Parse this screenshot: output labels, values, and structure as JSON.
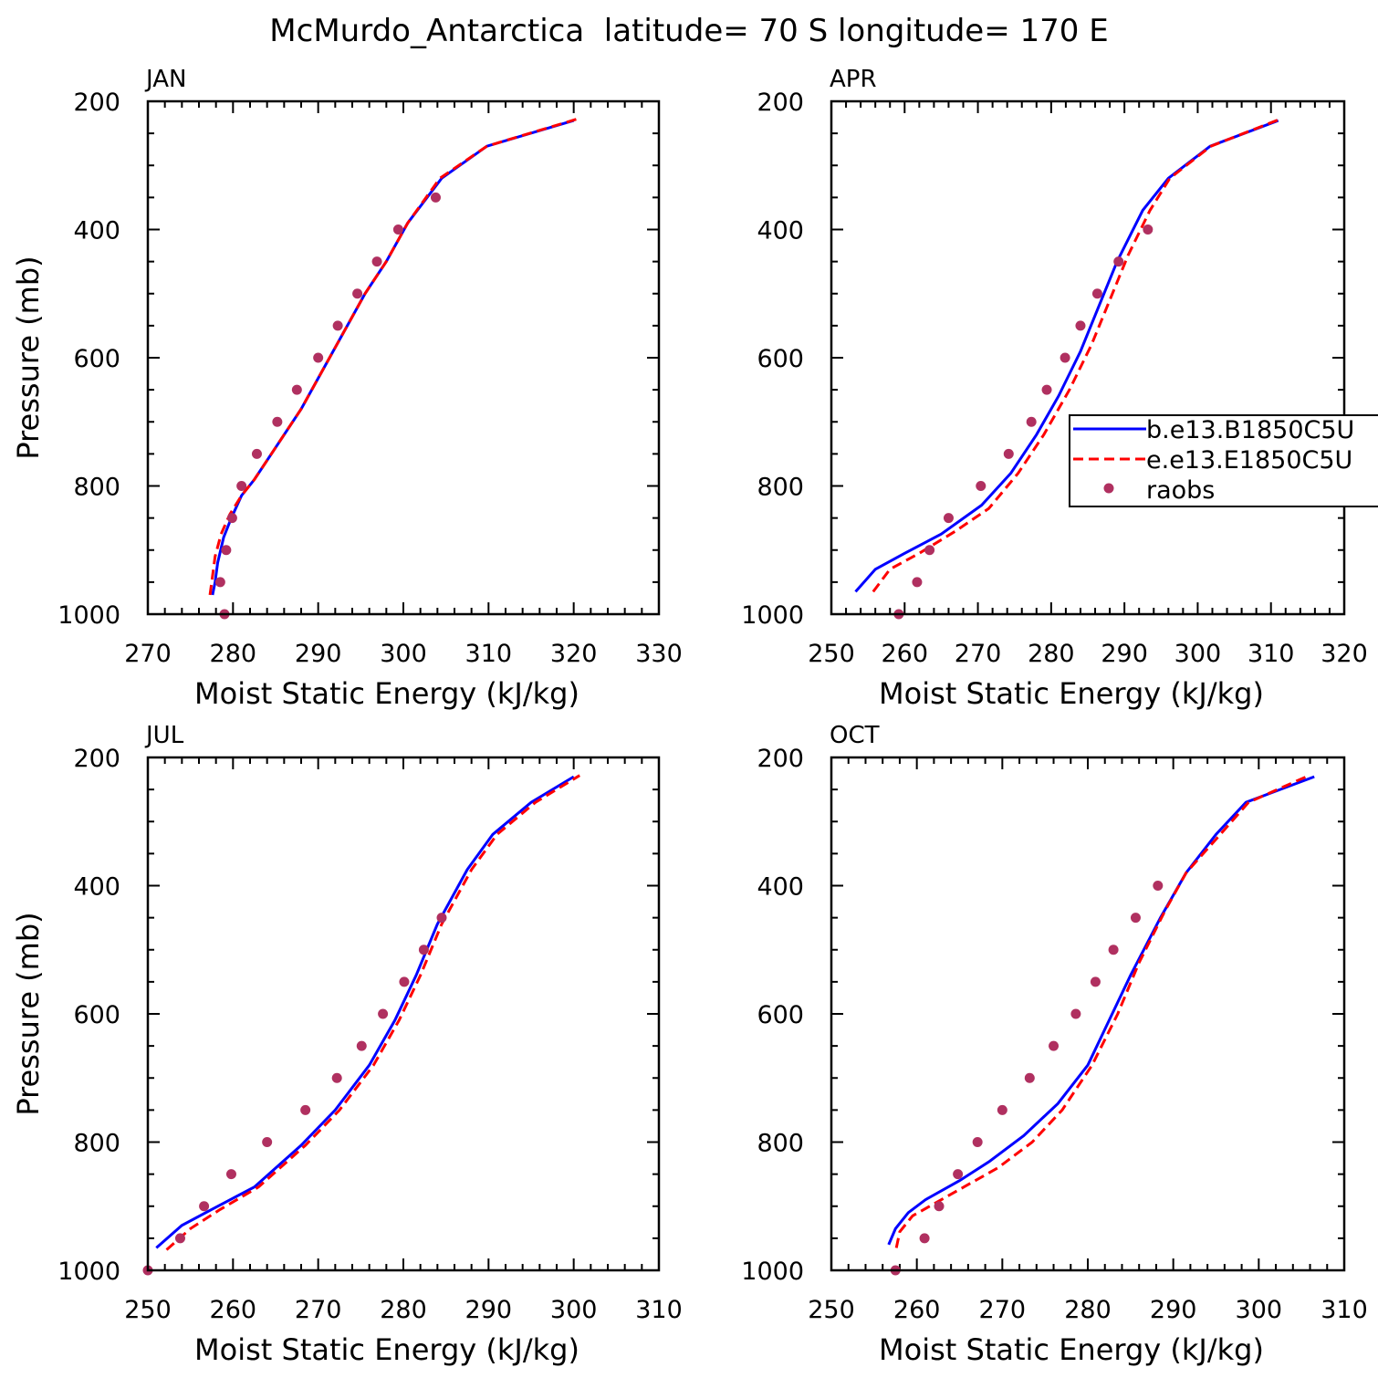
{
  "title": "McMurdo_Antarctica  latitude= 70 S longitude= 170 E",
  "colors": {
    "b": "#0000ff",
    "e": "#ff0000",
    "raobs": "#b03060"
  },
  "legend": {
    "placement": "right-of-APR-panel",
    "entries": [
      {
        "label": "b.e13.B1850C5U",
        "style": "solid",
        "color": "#0000ff"
      },
      {
        "label": "e.e13.E1850C5U",
        "style": "dashed",
        "color": "#ff0000"
      },
      {
        "label": "raobs",
        "style": "dot",
        "color": "#b03060"
      }
    ]
  },
  "chart_data": [
    {
      "type": "line",
      "title": "JAN",
      "xlabel": "Moist Static Energy (kJ/kg)",
      "ylabel": "Pressure (mb)",
      "xlim": [
        270,
        330
      ],
      "ylim": [
        1000,
        200
      ],
      "xticks": [
        270,
        280,
        290,
        300,
        310,
        320,
        330
      ],
      "yticks": [
        200,
        400,
        600,
        800,
        1000
      ],
      "series": [
        {
          "name": "b.e13.B1850C5U",
          "style": "solid",
          "color": "#0000ff",
          "points": [
            [
              277.6,
              970
            ],
            [
              277.9,
              950
            ],
            [
              278.2,
              920
            ],
            [
              278.9,
              880
            ],
            [
              279.8,
              850
            ],
            [
              281.0,
              815
            ],
            [
              282.5,
              790
            ],
            [
              285.0,
              740
            ],
            [
              288.0,
              680
            ],
            [
              290.5,
              620
            ],
            [
              293.0,
              560
            ],
            [
              295.5,
              500
            ],
            [
              298.0,
              450
            ],
            [
              300.5,
              390
            ],
            [
              304.5,
              320
            ],
            [
              309.8,
              270
            ],
            [
              320.0,
              230
            ]
          ]
        },
        {
          "name": "e.e13.E1850C5U",
          "style": "dashed",
          "color": "#ff0000",
          "points": [
            [
              277.3,
              970
            ],
            [
              277.5,
              950
            ],
            [
              277.9,
              910
            ],
            [
              278.6,
              875
            ],
            [
              279.6,
              845
            ],
            [
              281.0,
              815
            ],
            [
              282.5,
              790
            ],
            [
              285.0,
              740
            ],
            [
              288.0,
              680
            ],
            [
              290.5,
              620
            ],
            [
              293.0,
              560
            ],
            [
              295.5,
              500
            ],
            [
              298.0,
              450
            ],
            [
              300.5,
              390
            ],
            [
              304.3,
              320
            ],
            [
              309.8,
              270
            ],
            [
              320.3,
              228
            ]
          ]
        },
        {
          "name": "raobs",
          "style": "dot",
          "color": "#b03060",
          "points": [
            [
              279.0,
              1000
            ],
            [
              278.5,
              950
            ],
            [
              279.2,
              900
            ],
            [
              279.9,
              850
            ],
            [
              281.0,
              800
            ],
            [
              282.8,
              750
            ],
            [
              285.2,
              700
            ],
            [
              287.5,
              650
            ],
            [
              290.0,
              600
            ],
            [
              292.3,
              550
            ],
            [
              294.6,
              500
            ],
            [
              296.9,
              450
            ],
            [
              299.4,
              400
            ],
            [
              303.8,
              350
            ]
          ]
        }
      ]
    },
    {
      "type": "line",
      "title": "APR",
      "xlabel": "Moist Static Energy (kJ/kg)",
      "ylabel": "",
      "xlim": [
        250,
        320
      ],
      "ylim": [
        1000,
        200
      ],
      "xticks": [
        250,
        260,
        270,
        280,
        290,
        300,
        310,
        320
      ],
      "yticks": [
        200,
        400,
        600,
        800,
        1000
      ],
      "series": [
        {
          "name": "b.e13.B1850C5U",
          "style": "solid",
          "color": "#0000ff",
          "points": [
            [
              253.3,
              965
            ],
            [
              256.0,
              930
            ],
            [
              260.0,
              905
            ],
            [
              265.0,
              875
            ],
            [
              270.5,
              830
            ],
            [
              274.5,
              780
            ],
            [
              278.0,
              720
            ],
            [
              281.0,
              660
            ],
            [
              284.0,
              590
            ],
            [
              286.5,
              520
            ],
            [
              289.0,
              450
            ],
            [
              292.5,
              370
            ],
            [
              296.0,
              320
            ],
            [
              301.7,
              270
            ],
            [
              311.0,
              230
            ]
          ]
        },
        {
          "name": "e.e13.E1850C5U",
          "style": "dashed",
          "color": "#ff0000",
          "points": [
            [
              255.7,
              965
            ],
            [
              258.0,
              930
            ],
            [
              262.0,
              905
            ],
            [
              267.0,
              870
            ],
            [
              271.5,
              835
            ],
            [
              275.5,
              780
            ],
            [
              279.0,
              720
            ],
            [
              282.5,
              650
            ],
            [
              285.5,
              580
            ],
            [
              288.0,
              510
            ],
            [
              290.5,
              440
            ],
            [
              293.5,
              370
            ],
            [
              296.2,
              320
            ],
            [
              301.8,
              270
            ],
            [
              311.2,
              228
            ]
          ]
        },
        {
          "name": "raobs",
          "style": "dot",
          "color": "#b03060",
          "points": [
            [
              259.2,
              1000
            ],
            [
              261.7,
              950
            ],
            [
              263.4,
              900
            ],
            [
              266.0,
              850
            ],
            [
              270.4,
              800
            ],
            [
              274.2,
              750
            ],
            [
              277.3,
              700
            ],
            [
              279.4,
              650
            ],
            [
              281.9,
              600
            ],
            [
              284.0,
              550
            ],
            [
              286.3,
              500
            ],
            [
              289.2,
              450
            ],
            [
              293.2,
              400
            ]
          ]
        }
      ]
    },
    {
      "type": "line",
      "title": "JUL",
      "xlabel": "Moist Static Energy (kJ/kg)",
      "ylabel": "Pressure (mb)",
      "xlim": [
        250,
        310
      ],
      "ylim": [
        1000,
        200
      ],
      "xticks": [
        250,
        260,
        270,
        280,
        290,
        300,
        310
      ],
      "yticks": [
        200,
        400,
        600,
        800,
        1000
      ],
      "series": [
        {
          "name": "b.e13.B1850C5U",
          "style": "solid",
          "color": "#0000ff",
          "points": [
            [
              251.0,
              965
            ],
            [
              254.0,
              930
            ],
            [
              257.5,
              905
            ],
            [
              262.5,
              870
            ],
            [
              268.0,
              805
            ],
            [
              272.0,
              750
            ],
            [
              276.0,
              680
            ],
            [
              279.0,
              610
            ],
            [
              281.5,
              540
            ],
            [
              284.0,
              460
            ],
            [
              287.5,
              375
            ],
            [
              290.5,
              320
            ],
            [
              295.0,
              270
            ],
            [
              300.0,
              230
            ]
          ]
        },
        {
          "name": "e.e13.E1850C5U",
          "style": "dashed",
          "color": "#ff0000",
          "points": [
            [
              252.2,
              968
            ],
            [
              255.0,
              935
            ],
            [
              258.5,
              905
            ],
            [
              263.0,
              870
            ],
            [
              268.5,
              805
            ],
            [
              272.5,
              750
            ],
            [
              276.5,
              680
            ],
            [
              279.5,
              610
            ],
            [
              282.0,
              540
            ],
            [
              284.5,
              460
            ],
            [
              288.0,
              375
            ],
            [
              291.0,
              320
            ],
            [
              295.5,
              270
            ],
            [
              300.7,
              228
            ]
          ]
        },
        {
          "name": "raobs",
          "style": "dot",
          "color": "#b03060",
          "points": [
            [
              250.0,
              1000
            ],
            [
              253.8,
              950
            ],
            [
              256.6,
              900
            ],
            [
              259.8,
              850
            ],
            [
              264.0,
              800
            ],
            [
              268.5,
              750
            ],
            [
              272.2,
              700
            ],
            [
              275.1,
              650
            ],
            [
              277.6,
              600
            ],
            [
              280.1,
              550
            ],
            [
              282.4,
              500
            ],
            [
              284.5,
              450
            ]
          ]
        }
      ]
    },
    {
      "type": "line",
      "title": "OCT",
      "xlabel": "Moist Static Energy (kJ/kg)",
      "ylabel": "",
      "xlim": [
        250,
        310
      ],
      "ylim": [
        1000,
        200
      ],
      "xticks": [
        250,
        260,
        270,
        280,
        290,
        300,
        310
      ],
      "yticks": [
        200,
        400,
        600,
        800,
        1000
      ],
      "series": [
        {
          "name": "b.e13.B1850C5U",
          "style": "solid",
          "color": "#0000ff",
          "points": [
            [
              256.7,
              960
            ],
            [
              257.5,
              935
            ],
            [
              259.0,
              910
            ],
            [
              261.0,
              890
            ],
            [
              265.0,
              860
            ],
            [
              268.5,
              830
            ],
            [
              272.5,
              790
            ],
            [
              276.5,
              740
            ],
            [
              280.0,
              680
            ],
            [
              282.5,
              610
            ],
            [
              285.0,
              540
            ],
            [
              288.5,
              450
            ],
            [
              291.5,
              380
            ],
            [
              295.0,
              320
            ],
            [
              298.5,
              270
            ],
            [
              306.5,
              230
            ]
          ]
        },
        {
          "name": "e.e13.E1850C5U",
          "style": "dashed",
          "color": "#ff0000",
          "points": [
            [
              257.6,
              965
            ],
            [
              258.0,
              940
            ],
            [
              259.5,
              915
            ],
            [
              261.5,
              900
            ],
            [
              265.5,
              870
            ],
            [
              269.5,
              840
            ],
            [
              273.5,
              800
            ],
            [
              277.0,
              750
            ],
            [
              280.5,
              680
            ],
            [
              283.5,
              600
            ],
            [
              286.0,
              520
            ],
            [
              289.0,
              440
            ],
            [
              291.5,
              380
            ],
            [
              295.5,
              320
            ],
            [
              298.8,
              270
            ],
            [
              305.9,
              228
            ]
          ]
        },
        {
          "name": "raobs",
          "style": "dot",
          "color": "#b03060",
          "points": [
            [
              257.5,
              1000
            ],
            [
              260.9,
              950
            ],
            [
              262.6,
              900
            ],
            [
              264.8,
              850
            ],
            [
              267.1,
              800
            ],
            [
              270.0,
              750
            ],
            [
              273.2,
              700
            ],
            [
              276.0,
              650
            ],
            [
              278.6,
              600
            ],
            [
              280.9,
              550
            ],
            [
              283.0,
              500
            ],
            [
              285.6,
              450
            ],
            [
              288.2,
              400
            ]
          ]
        }
      ]
    }
  ]
}
